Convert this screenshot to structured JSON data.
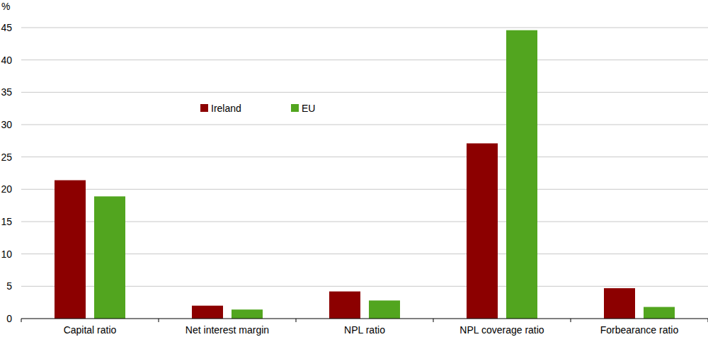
{
  "chart_data": {
    "type": "bar",
    "y_label": "%",
    "categories": [
      "Capital ratio",
      "Net interest margin",
      "NPL ratio",
      "NPL coverage ratio",
      "Forbearance ratio"
    ],
    "series": [
      {
        "name": "Ireland",
        "color": "#8c0000",
        "values": [
          21.4,
          2.0,
          4.2,
          27.1,
          4.7
        ]
      },
      {
        "name": "EU",
        "color": "#52a51f",
        "values": [
          18.9,
          1.4,
          2.8,
          44.6,
          1.8
        ]
      }
    ],
    "ylim": [
      0,
      45
    ],
    "yticks": [
      0,
      5,
      10,
      15,
      20,
      25,
      30,
      35,
      40,
      45
    ],
    "grid": true,
    "legend": "top"
  }
}
